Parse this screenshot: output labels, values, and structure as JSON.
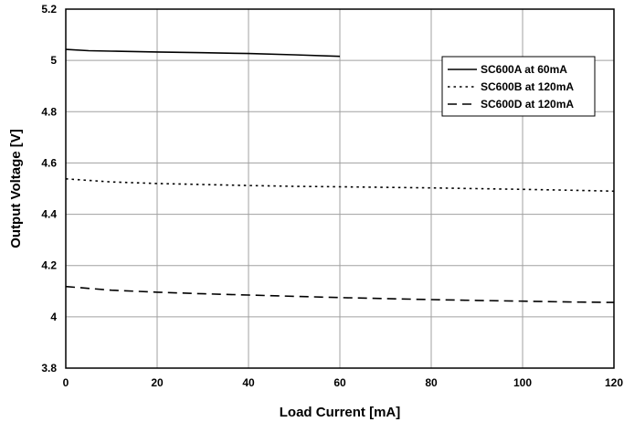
{
  "chart_data": {
    "type": "line",
    "title": "",
    "xlabel": "Load Current [mA]",
    "ylabel": "Output Voltage [V]",
    "xlim": [
      0,
      120
    ],
    "ylim": [
      3.8,
      5.2
    ],
    "grid": true,
    "legend_position": "top-right",
    "x_ticks": [
      "0",
      "20",
      "40",
      "60",
      "80",
      "100",
      "120"
    ],
    "y_ticks": [
      "3.8",
      "4",
      "4.2",
      "4.4",
      "4.6",
      "4.8",
      "5",
      "5.2"
    ],
    "series": [
      {
        "name": "SC600A at 60mA",
        "line_style": "solid",
        "x": [
          0,
          5,
          10,
          20,
          30,
          40,
          50,
          60
        ],
        "y": [
          5.043,
          5.038,
          5.036,
          5.033,
          5.03,
          5.027,
          5.022,
          5.016
        ]
      },
      {
        "name": "SC600B at 120mA",
        "line_style": "dotted",
        "x": [
          0,
          10,
          20,
          30,
          40,
          50,
          60,
          70,
          80,
          90,
          100,
          110,
          120
        ],
        "y": [
          4.538,
          4.526,
          4.52,
          4.516,
          4.512,
          4.509,
          4.507,
          4.505,
          4.503,
          4.5,
          4.497,
          4.494,
          4.49
        ]
      },
      {
        "name": "SC600D at 120mA",
        "line_style": "dashed",
        "x": [
          0,
          10,
          20,
          30,
          40,
          50,
          60,
          70,
          80,
          90,
          100,
          110,
          120
        ],
        "y": [
          4.118,
          4.104,
          4.096,
          4.09,
          4.085,
          4.08,
          4.075,
          4.071,
          4.067,
          4.064,
          4.061,
          4.058,
          4.056
        ]
      }
    ]
  }
}
